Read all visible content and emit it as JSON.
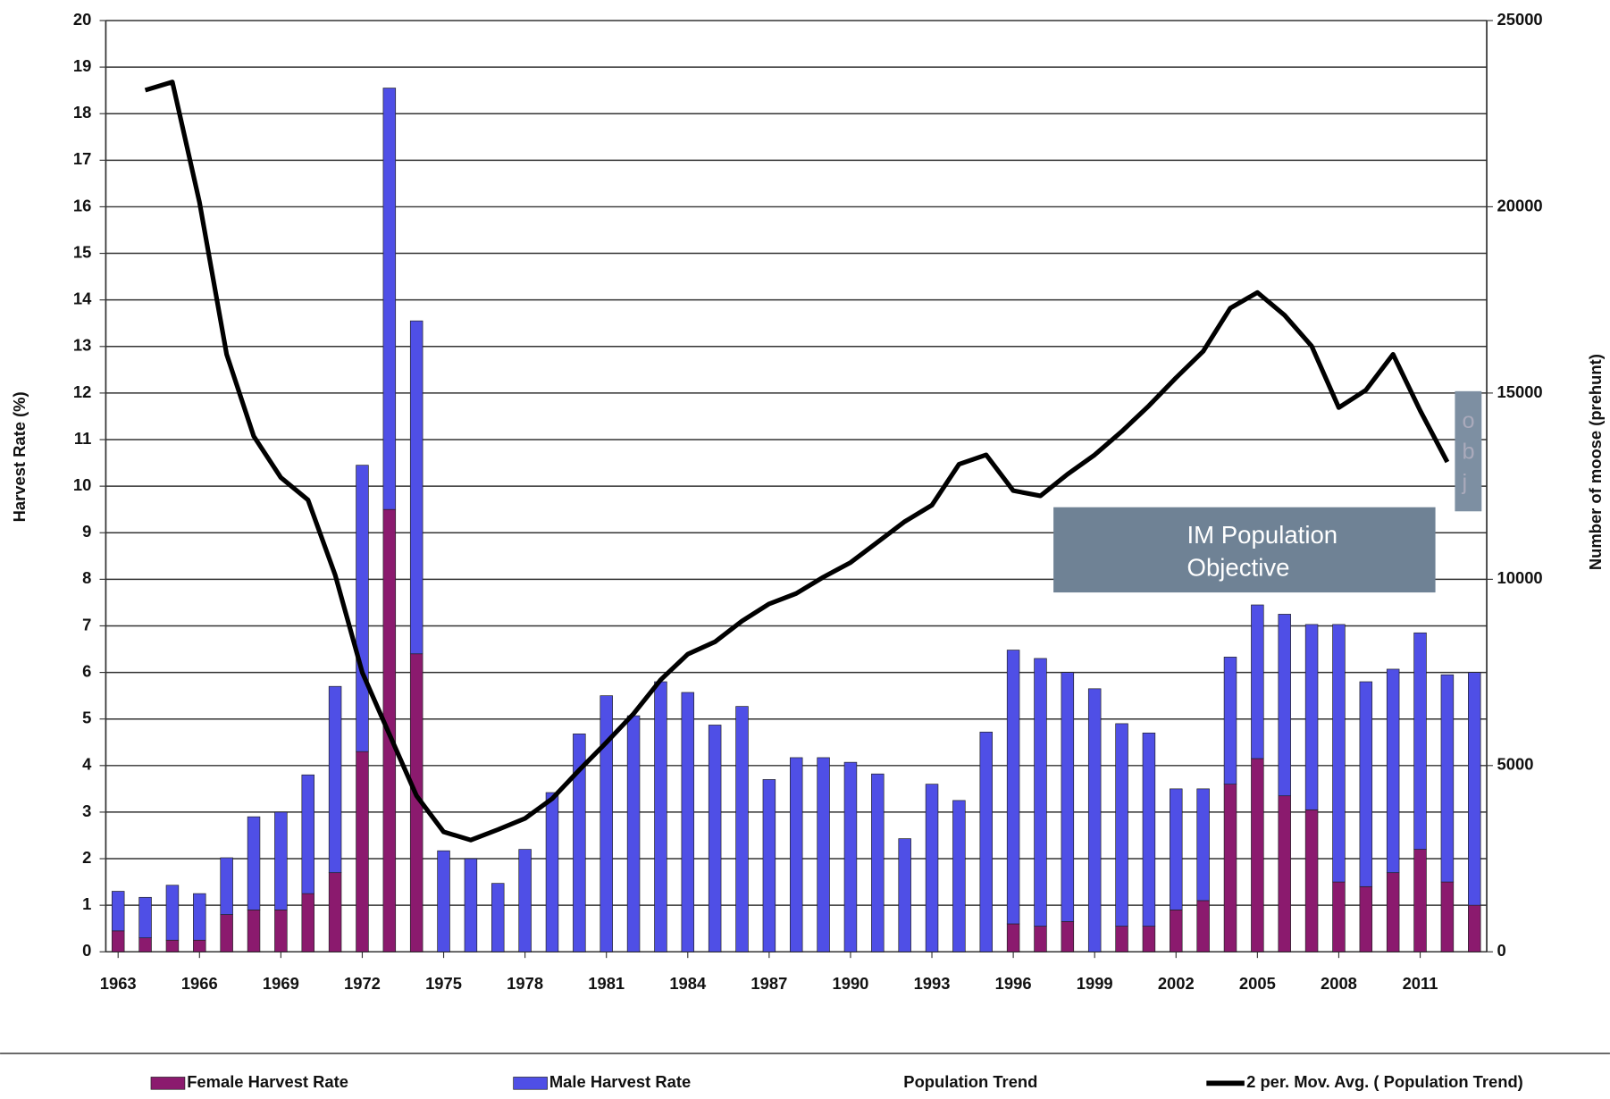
{
  "chart_data": {
    "type": "bar",
    "ylabel": "Harvest Rate (%)",
    "y2label": "Number of moose (prehunt)",
    "categories": [
      "1963",
      null,
      null,
      "1966",
      null,
      null,
      "1969",
      null,
      null,
      "1972",
      null,
      null,
      "1975",
      null,
      null,
      "1978",
      null,
      null,
      "1981",
      null,
      null,
      "1984",
      null,
      null,
      "1987",
      null,
      null,
      "1990",
      null,
      null,
      "1993",
      null,
      null,
      "1996",
      null,
      null,
      "1999",
      null,
      null,
      "2002",
      null,
      null,
      "2005",
      null,
      null,
      "2008",
      null,
      null,
      "2011",
      null,
      null
    ],
    "stacked": true,
    "series": [
      {
        "name": "Female Harvest Rate",
        "color": "#8b1a6e",
        "values": [
          0.45,
          0.3,
          0.25,
          0.25,
          0.8,
          0.9,
          0.9,
          1.25,
          1.7,
          4.3,
          9.5,
          6.4,
          0,
          0,
          0,
          0,
          0,
          0,
          0,
          0,
          0,
          0,
          0,
          0,
          0,
          0,
          0,
          0,
          0,
          0,
          0,
          0,
          0,
          0.6,
          0.55,
          0.65,
          0,
          0.55,
          0.55,
          0.9,
          1.1,
          3.6,
          4.15,
          3.35,
          3.05,
          1.5,
          1.4,
          1.7,
          2.2,
          1.5,
          1.0
        ]
      },
      {
        "name": "Male Harvest Rate",
        "color": "#4f4fe6",
        "values": [
          0.85,
          0.87,
          1.18,
          1.0,
          1.22,
          2.0,
          2.1,
          2.55,
          4.0,
          6.15,
          9.05,
          7.15,
          2.17,
          2.0,
          1.47,
          2.2,
          3.42,
          4.68,
          5.5,
          5.07,
          5.8,
          5.57,
          4.87,
          5.27,
          3.7,
          4.17,
          4.17,
          4.07,
          3.82,
          2.43,
          3.6,
          3.25,
          4.72,
          5.88,
          5.75,
          5.35,
          5.65,
          4.35,
          4.15,
          2.6,
          2.4,
          2.73,
          3.3,
          3.9,
          3.98,
          5.53,
          4.4,
          4.37,
          4.65,
          4.45,
          5.0
        ]
      },
      {
        "name": "Population Trend",
        "type": "line",
        "axis": "y2",
        "values": [
          null,
          null,
          null,
          null,
          null,
          null,
          null,
          null,
          null,
          null,
          null,
          null,
          null,
          null,
          null,
          null,
          null,
          null,
          null,
          null,
          null,
          null,
          null,
          null,
          null,
          null,
          null,
          null,
          null,
          null,
          null,
          null,
          null,
          null,
          null,
          null,
          null,
          null,
          null,
          null,
          null,
          null,
          null,
          null,
          null,
          null,
          null,
          null,
          null,
          null,
          null
        ]
      },
      {
        "name": "2 per. Mov. Avg. ( Population Trend)",
        "type": "line",
        "axis": "y2",
        "color": "#000000",
        "values": [
          null,
          23130,
          23350,
          20120,
          16040,
          13840,
          12730,
          12130,
          10120,
          7500,
          5840,
          4190,
          3220,
          3000,
          3280,
          3580,
          4110,
          4880,
          5620,
          6390,
          7300,
          7990,
          8320,
          8880,
          9340,
          9620,
          10060,
          10450,
          11000,
          11550,
          11990,
          13090,
          13340,
          12380,
          12240,
          12820,
          13340,
          13970,
          14660,
          15410,
          16120,
          17280,
          17700,
          17090,
          16260,
          14610,
          15080,
          16040,
          14530,
          13150,
          null
        ]
      }
    ],
    "ylim": [
      0,
      20
    ],
    "yticks": [
      0,
      1,
      2,
      3,
      4,
      5,
      6,
      7,
      8,
      9,
      10,
      11,
      12,
      13,
      14,
      15,
      16,
      17,
      18,
      19,
      20
    ],
    "y2lim": [
      0,
      25000
    ],
    "y2ticks": [
      0,
      5000,
      10000,
      15000,
      20000,
      25000
    ],
    "grid": true,
    "legend": "bottom",
    "annotations": [
      "IM Population Objective",
      "obj"
    ]
  }
}
